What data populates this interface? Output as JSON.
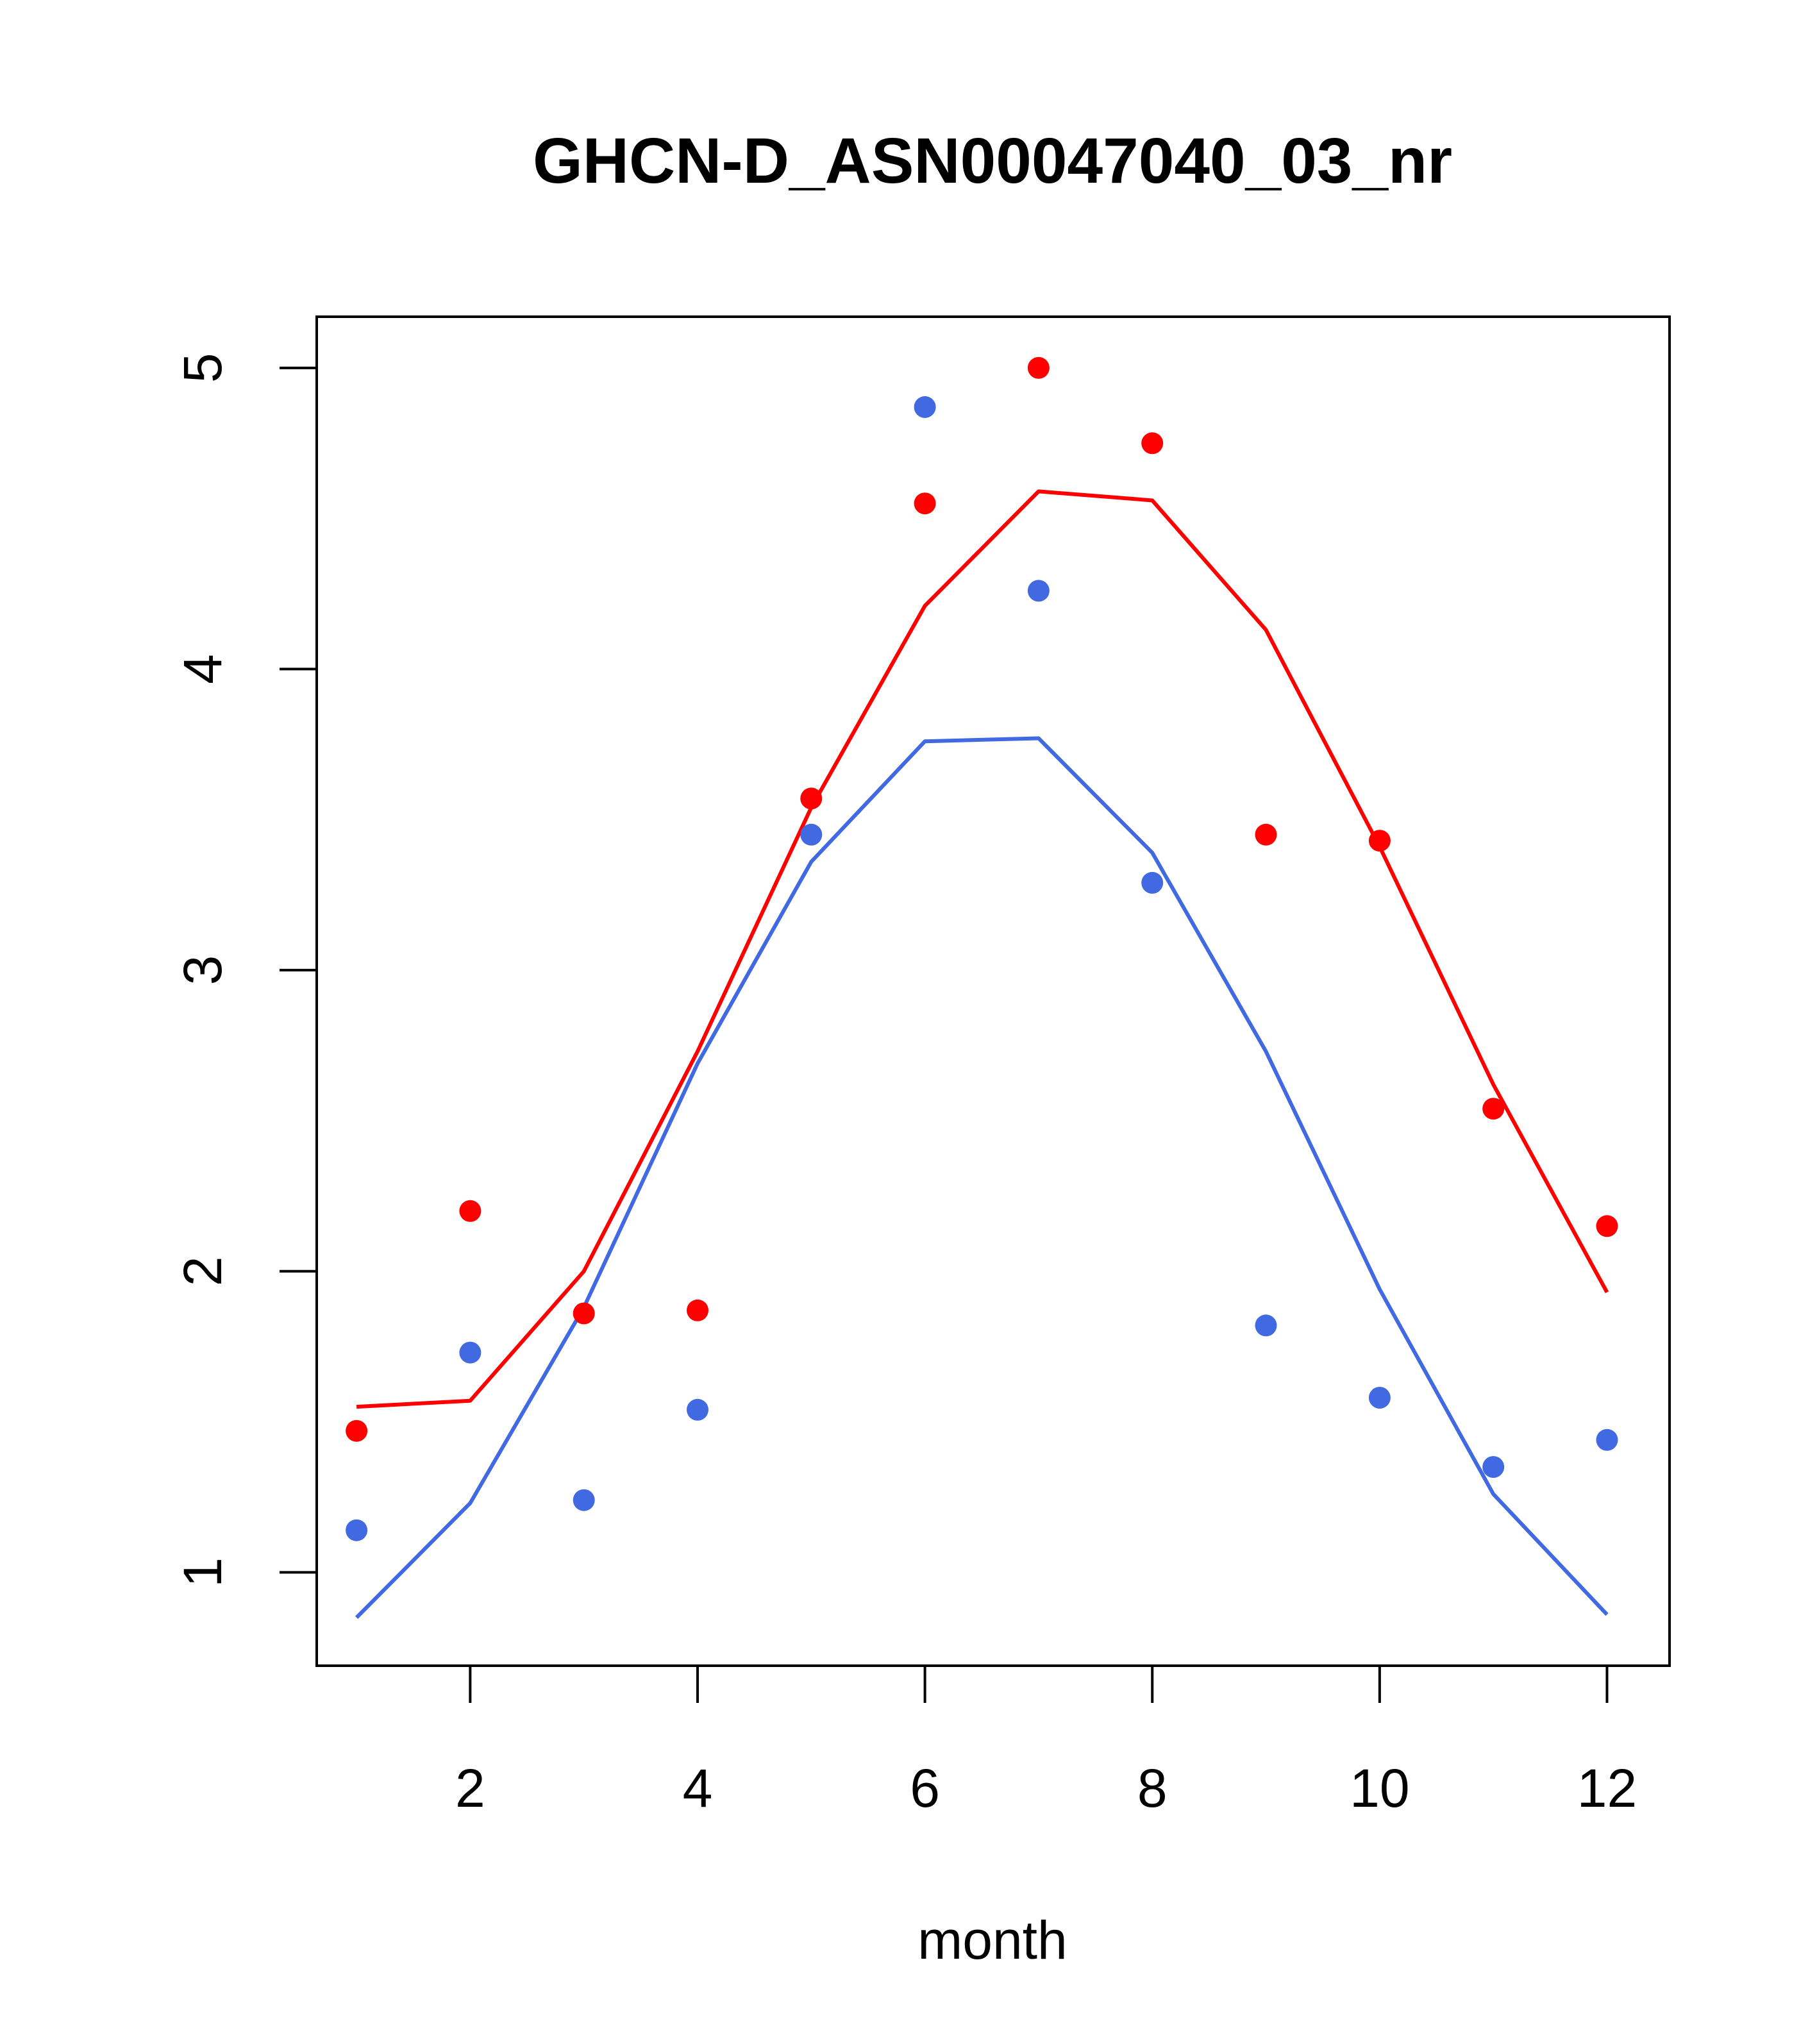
{
  "chart_data": {
    "type": "scatter",
    "title": "GHCN-D_ASN00047040_03_nr",
    "xlabel": "month",
    "ylabel": "",
    "xlim": [
      0.65,
      12.55
    ],
    "ylim": [
      0.69,
      5.17
    ],
    "x_ticks": [
      2,
      4,
      6,
      8,
      10,
      12
    ],
    "y_ticks": [
      1,
      2,
      3,
      4,
      5
    ],
    "grid": false,
    "legend": "none",
    "series": [
      {
        "color": "#ff0000",
        "mark": "point",
        "x": [
          1,
          2,
          3,
          4,
          5,
          6,
          7,
          8,
          9,
          10,
          11,
          12
        ],
        "y": [
          1.47,
          2.2,
          1.86,
          1.87,
          3.57,
          4.55,
          5.0,
          4.75,
          3.45,
          3.43,
          2.54,
          2.15
        ]
      },
      {
        "color": "#4169e1",
        "mark": "point",
        "x": [
          1,
          2,
          3,
          4,
          5,
          6,
          7,
          8,
          9,
          10,
          11,
          12
        ],
        "y": [
          1.14,
          1.73,
          1.24,
          1.54,
          3.45,
          4.87,
          4.26,
          3.29,
          1.82,
          1.58,
          1.35,
          1.44
        ]
      },
      {
        "color": "#ff0000",
        "mark": "line",
        "x": [
          1,
          2,
          3,
          4,
          5,
          6,
          7,
          8,
          9,
          10,
          11,
          12
        ],
        "y": [
          1.55,
          1.57,
          2.0,
          2.73,
          3.54,
          4.21,
          4.59,
          4.56,
          4.13,
          3.41,
          2.62,
          1.93
        ]
      },
      {
        "color": "#4169e1",
        "mark": "line",
        "x": [
          1,
          2,
          3,
          4,
          5,
          6,
          7,
          8,
          9,
          10,
          11,
          12
        ],
        "y": [
          0.85,
          1.23,
          1.88,
          2.69,
          3.36,
          3.76,
          3.77,
          3.39,
          2.73,
          1.94,
          1.26,
          0.86
        ]
      }
    ]
  }
}
